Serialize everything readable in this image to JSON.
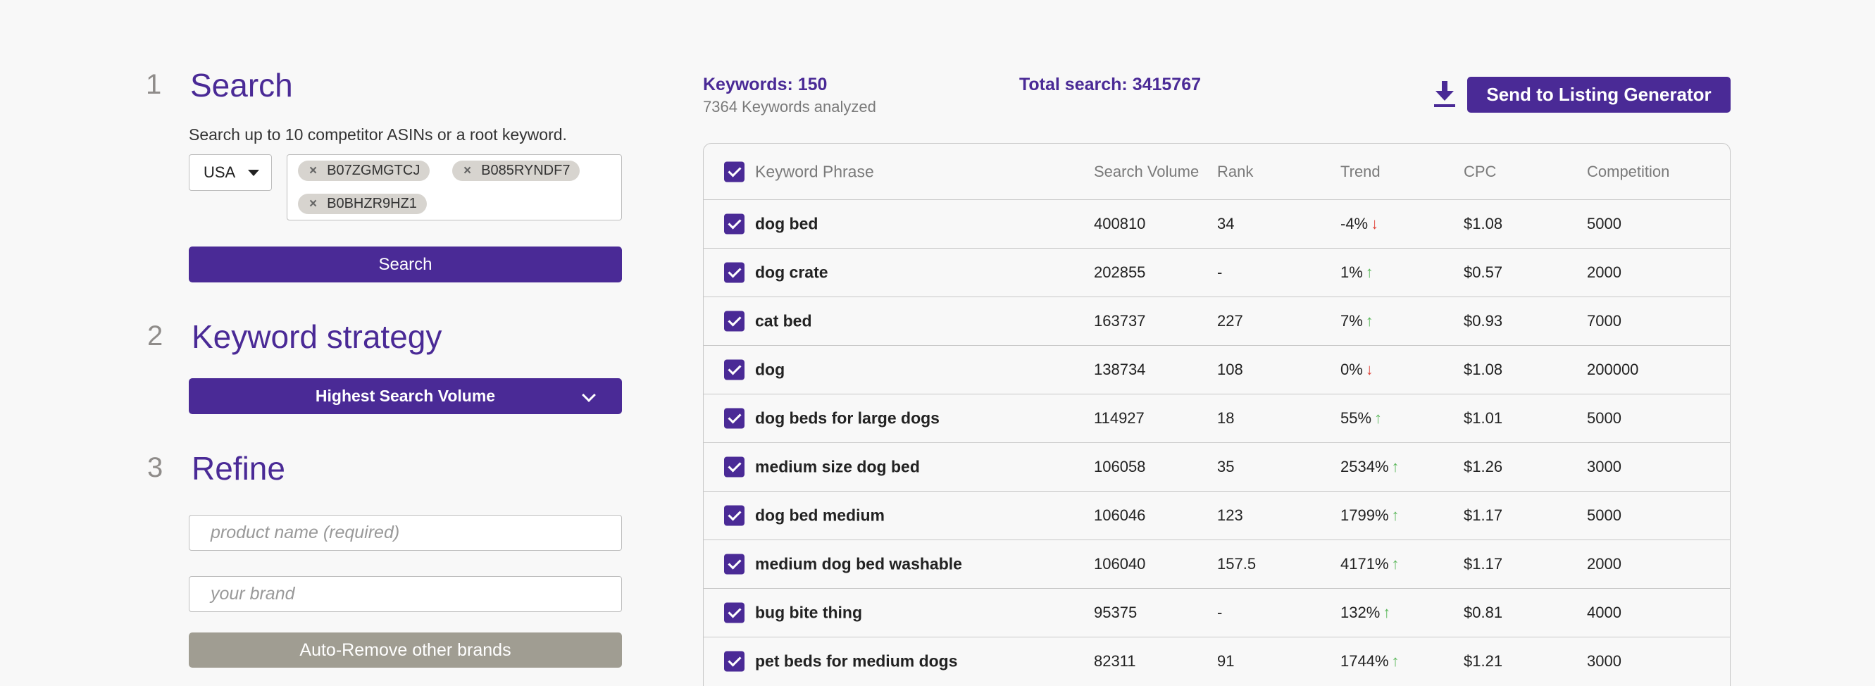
{
  "steps": [
    {
      "num": "1",
      "title": "Search"
    },
    {
      "num": "2",
      "title": "Keyword strategy"
    },
    {
      "num": "3",
      "title": "Refine"
    }
  ],
  "search": {
    "hint": "Search up to 10 competitor ASINs or a root keyword.",
    "country": "USA",
    "asins": [
      "B07ZGMGTCJ",
      "B085RYNDF7",
      "B0BHZR9HZ1"
    ],
    "button_label": "Search"
  },
  "strategy": {
    "selected": "Highest Search Volume"
  },
  "refine": {
    "product_placeholder": "product name (required)",
    "brand_placeholder": "your brand",
    "auto_remove_label": "Auto-Remove other brands"
  },
  "summary": {
    "keywords": "Keywords: 150",
    "analyzed": "7364 Keywords analyzed",
    "total_search": "Total search: 3415767"
  },
  "toolbar": {
    "download_icon": "download-icon",
    "send_label": "Send to Listing Generator"
  },
  "table": {
    "columns": [
      "Keyword Phrase",
      "Search Volume",
      "Rank",
      "Trend",
      "CPC",
      "Competition"
    ],
    "rows": [
      {
        "phrase": "dog bed",
        "volume": "400810",
        "rank": "34",
        "trend": "-4%",
        "dir": "down",
        "cpc": "$1.08",
        "competition": "5000"
      },
      {
        "phrase": "dog crate",
        "volume": "202855",
        "rank": "-",
        "trend": "1%",
        "dir": "up",
        "cpc": "$0.57",
        "competition": "2000"
      },
      {
        "phrase": "cat bed",
        "volume": "163737",
        "rank": "227",
        "trend": "7%",
        "dir": "up",
        "cpc": "$0.93",
        "competition": "7000"
      },
      {
        "phrase": "dog",
        "volume": "138734",
        "rank": "108",
        "trend": "0%",
        "dir": "down",
        "cpc": "$1.08",
        "competition": "200000"
      },
      {
        "phrase": "dog beds for large dogs",
        "volume": "114927",
        "rank": "18",
        "trend": "55%",
        "dir": "up",
        "cpc": "$1.01",
        "competition": "5000"
      },
      {
        "phrase": "medium size dog bed",
        "volume": "106058",
        "rank": "35",
        "trend": "2534%",
        "dir": "up",
        "cpc": "$1.26",
        "competition": "3000"
      },
      {
        "phrase": "dog bed medium",
        "volume": "106046",
        "rank": "123",
        "trend": "1799%",
        "dir": "up",
        "cpc": "$1.17",
        "competition": "5000"
      },
      {
        "phrase": "medium dog bed washable",
        "volume": "106040",
        "rank": "157.5",
        "trend": "4171%",
        "dir": "up",
        "cpc": "$1.17",
        "competition": "2000"
      },
      {
        "phrase": "bug bite thing",
        "volume": "95375",
        "rank": "-",
        "trend": "132%",
        "dir": "up",
        "cpc": "$0.81",
        "competition": "4000"
      },
      {
        "phrase": "pet beds for medium dogs",
        "volume": "82311",
        "rank": "91",
        "trend": "1744%",
        "dir": "up",
        "cpc": "$1.21",
        "competition": "3000"
      }
    ]
  },
  "colors": {
    "accent": "#4a2a96",
    "grey_button": "#a09d92",
    "trend_up": "#5cb85c",
    "trend_down": "#e0453a"
  }
}
